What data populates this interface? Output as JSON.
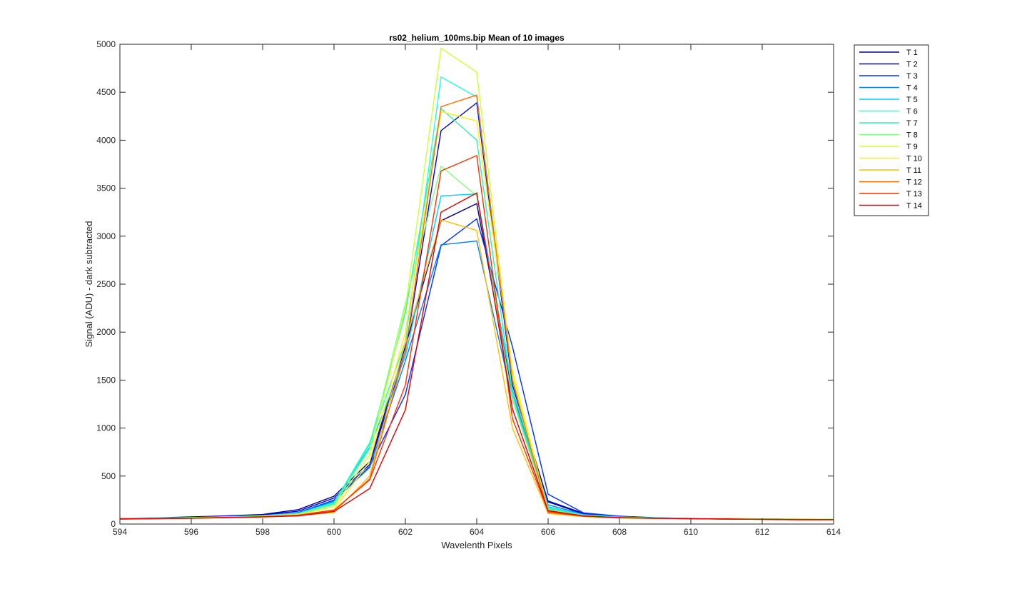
{
  "chart_data": {
    "type": "line",
    "title": "rs02_helium_100ms.bip  Mean of 10 images",
    "xlabel": "Wavelenth Pixels",
    "ylabel": "Signal (ADU) - dark subtracted",
    "xlim": [
      594,
      614
    ],
    "ylim": [
      0,
      5000
    ],
    "xticks": [
      594,
      596,
      598,
      600,
      602,
      604,
      606,
      608,
      610,
      612,
      614
    ],
    "yticks": [
      0,
      500,
      1000,
      1500,
      2000,
      2500,
      3000,
      3500,
      4000,
      4500,
      5000
    ],
    "grid": false,
    "legend_position": "outside-top-right",
    "x": [
      594,
      595,
      596,
      597,
      598,
      599,
      600,
      601,
      602,
      603,
      604,
      605,
      606,
      607,
      608,
      609,
      610,
      611,
      612,
      613,
      614
    ],
    "series": [
      {
        "name": "T 1",
        "color": "#00008F",
        "values": [
          60,
          65,
          75,
          85,
          100,
          150,
          290,
          650,
          1850,
          3160,
          3340,
          1350,
          240,
          110,
          80,
          65,
          58,
          55,
          52,
          50,
          50
        ]
      },
      {
        "name": "T 2",
        "color": "#0000DF",
        "values": [
          58,
          62,
          70,
          82,
          95,
          135,
          270,
          620,
          1800,
          4100,
          4390,
          1450,
          230,
          105,
          78,
          64,
          57,
          54,
          51,
          49,
          48
        ]
      },
      {
        "name": "T 3",
        "color": "#0030FF",
        "values": [
          55,
          60,
          68,
          78,
          90,
          120,
          250,
          600,
          1350,
          2900,
          3180,
          1850,
          310,
          115,
          82,
          66,
          58,
          55,
          52,
          50,
          49
        ]
      },
      {
        "name": "T 4",
        "color": "#0080FF",
        "values": [
          55,
          60,
          66,
          76,
          88,
          115,
          240,
          590,
          1700,
          2910,
          2950,
          1300,
          200,
          100,
          76,
          63,
          56,
          53,
          50,
          48,
          47
        ]
      },
      {
        "name": "T 5",
        "color": "#00CFFF",
        "values": [
          56,
          60,
          66,
          75,
          86,
          110,
          230,
          800,
          1750,
          3420,
          3440,
          1400,
          180,
          95,
          74,
          62,
          56,
          53,
          50,
          48,
          47
        ]
      },
      {
        "name": "T 6",
        "color": "#20FFDF",
        "values": [
          57,
          61,
          67,
          76,
          87,
          112,
          220,
          850,
          1900,
          4660,
          4450,
          1500,
          170,
          92,
          72,
          62,
          57,
          54,
          51,
          49,
          48
        ]
      },
      {
        "name": "T 7",
        "color": "#30EFB0",
        "values": [
          62,
          64,
          68,
          75,
          85,
          108,
          210,
          830,
          2200,
          4330,
          4000,
          1350,
          160,
          90,
          72,
          64,
          60,
          57,
          54,
          51,
          50
        ]
      },
      {
        "name": "T 8",
        "color": "#80FF80",
        "values": [
          60,
          62,
          66,
          74,
          84,
          105,
          200,
          780,
          2300,
          3730,
          3420,
          1300,
          150,
          88,
          70,
          63,
          59,
          56,
          53,
          50,
          49
        ]
      },
      {
        "name": "T 9",
        "color": "#CFFF30",
        "values": [
          58,
          60,
          64,
          72,
          82,
          100,
          180,
          720,
          2250,
          4960,
          4710,
          1550,
          140,
          85,
          68,
          61,
          57,
          54,
          51,
          49,
          48
        ]
      },
      {
        "name": "T 10",
        "color": "#FFEF00",
        "values": [
          55,
          58,
          62,
          70,
          80,
          95,
          150,
          650,
          2000,
          4300,
          4200,
          1600,
          130,
          82,
          66,
          60,
          56,
          53,
          50,
          48,
          47
        ]
      },
      {
        "name": "T 11",
        "color": "#FFBF00",
        "values": [
          52,
          55,
          60,
          68,
          75,
          88,
          120,
          500,
          1900,
          3170,
          3060,
          1000,
          110,
          78,
          64,
          58,
          54,
          51,
          49,
          47,
          46
        ]
      },
      {
        "name": "T 12",
        "color": "#FF7000",
        "values": [
          53,
          56,
          61,
          68,
          76,
          90,
          140,
          470,
          1800,
          4350,
          4470,
          1500,
          120,
          80,
          65,
          59,
          55,
          52,
          50,
          48,
          47
        ]
      },
      {
        "name": "T 13",
        "color": "#FF3000",
        "values": [
          54,
          57,
          62,
          69,
          77,
          92,
          145,
          460,
          1450,
          3680,
          3840,
          1100,
          130,
          82,
          66,
          59,
          55,
          52,
          49,
          45,
          45
        ]
      },
      {
        "name": "T 14",
        "color": "#DF0000",
        "values": [
          52,
          55,
          60,
          66,
          74,
          85,
          130,
          370,
          1190,
          3250,
          3450,
          1200,
          140,
          84,
          67,
          60,
          55,
          52,
          49,
          46,
          46
        ]
      }
    ]
  }
}
